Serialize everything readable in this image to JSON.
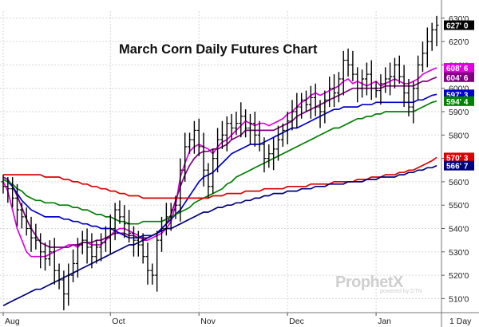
{
  "chart_data": {
    "type": "ohlc",
    "title": "March Corn Daily Futures Chart",
    "xlabel": "",
    "ylabel": "",
    "ylim": [
      504,
      633
    ],
    "grid": true,
    "y_ticks": [
      "510'0",
      "520'0",
      "530'0",
      "540'0",
      "550'0",
      "560'0",
      "570'0",
      "580'0",
      "590'0",
      "600'0",
      "610'0",
      "620'0",
      "630'0"
    ],
    "x_ticks": [
      "Aug",
      "Oct",
      "Nov",
      "Dec",
      "Jan"
    ],
    "x_tick_positions": [
      0,
      23,
      42,
      61,
      80
    ],
    "period_label": "1 Day",
    "bar_count": 94,
    "bars_close": [
      558,
      557,
      553,
      548,
      545,
      540,
      536,
      535,
      530,
      527,
      530,
      522,
      518,
      512,
      520,
      525,
      533,
      535,
      532,
      528,
      532,
      534,
      536,
      540,
      548,
      545,
      542,
      538,
      535,
      533,
      528,
      522,
      520,
      535,
      540,
      545,
      548,
      550,
      565,
      575,
      578,
      582,
      575,
      565,
      558,
      570,
      578,
      580,
      585,
      583,
      585,
      588,
      583,
      585,
      580,
      576,
      570,
      572,
      574,
      578,
      582,
      586,
      590,
      592,
      595,
      593,
      596,
      592,
      590,
      595,
      600,
      598,
      604,
      612,
      610,
      606,
      600,
      604,
      606,
      600,
      599,
      602,
      604,
      605,
      610,
      605,
      598,
      592,
      600,
      610,
      615,
      620,
      625,
      627
    ],
    "series": [
      {
        "name": "",
        "color": "#e000e0",
        "values": [
          560,
          556,
          548,
          540,
          535,
          530,
          528,
          528,
          528,
          528,
          529,
          530,
          531,
          532,
          533,
          533,
          532,
          534,
          534,
          533,
          533,
          533,
          535,
          537,
          539,
          540,
          540,
          539,
          538,
          537,
          535,
          535,
          536,
          537,
          538,
          540,
          543,
          550,
          562,
          568,
          573,
          575,
          576,
          575,
          574,
          572,
          575,
          577,
          578,
          580,
          582,
          584,
          586,
          585,
          584,
          585,
          585,
          584,
          585,
          586,
          587,
          589,
          590,
          592,
          594,
          595,
          597,
          598,
          597,
          598,
          599,
          600,
          601,
          603,
          604,
          602,
          603,
          602,
          601,
          602,
          603,
          601,
          602,
          603,
          604,
          603,
          602,
          602,
          603,
          604,
          606,
          607,
          608,
          608.75
        ]
      },
      {
        "name": "",
        "color": "#800080",
        "values": [
          562,
          561,
          558,
          554,
          549,
          544,
          540,
          537,
          534,
          533,
          532,
          532,
          532,
          532,
          532,
          533,
          533,
          534,
          534,
          534,
          535,
          535,
          536,
          537,
          538,
          538,
          538,
          537,
          537,
          536,
          536,
          536,
          537,
          538,
          540,
          542,
          546,
          552,
          558,
          563,
          567,
          570,
          572,
          573,
          573,
          574,
          574,
          575,
          576,
          578,
          579,
          580,
          582,
          582,
          582,
          582,
          582,
          582,
          582,
          583,
          584,
          585,
          586,
          588,
          589,
          590,
          591,
          592,
          593,
          594,
          595,
          596,
          597,
          598,
          599,
          600,
          600,
          600,
          600,
          600,
          600,
          600,
          601,
          601,
          601,
          601,
          601,
          601,
          601,
          602,
          603,
          603,
          604,
          604.75
        ]
      },
      {
        "name": "",
        "color": "#0000cc",
        "values": [
          561,
          560,
          558,
          555,
          552,
          550,
          548,
          547,
          546,
          545,
          545,
          545,
          545,
          544,
          544,
          543,
          543,
          542,
          542,
          541,
          541,
          540,
          540,
          540,
          539,
          538,
          537,
          536,
          536,
          536,
          537,
          537,
          537,
          538,
          540,
          542,
          544,
          546,
          548,
          551,
          554,
          557,
          560,
          562,
          563,
          564,
          566,
          568,
          570,
          572,
          573,
          574,
          575,
          576,
          576,
          576,
          577,
          578,
          579,
          580,
          581,
          582,
          583,
          583,
          584,
          585,
          586,
          587,
          588,
          589,
          590,
          591,
          591,
          592,
          592,
          592,
          592,
          593,
          593,
          593,
          594,
          594,
          594,
          594,
          594,
          594,
          594,
          594,
          594,
          595,
          595,
          596,
          597,
          597.4
        ]
      },
      {
        "name": "",
        "color": "#008000",
        "values": [
          561,
          560,
          559,
          557,
          556,
          554,
          553,
          552,
          552,
          551,
          551,
          551,
          550,
          550,
          550,
          549,
          549,
          548,
          548,
          547,
          546,
          546,
          545,
          545,
          544,
          543,
          543,
          542,
          542,
          542,
          543,
          543,
          543,
          543,
          543,
          544,
          545,
          546,
          547,
          548,
          549,
          551,
          552,
          553,
          554,
          555,
          556,
          557,
          559,
          560,
          562,
          563,
          564,
          565,
          566,
          567,
          568,
          569,
          570,
          571,
          572,
          573,
          574,
          575,
          576,
          577,
          578,
          579,
          580,
          581,
          582,
          583,
          583,
          584,
          585,
          586,
          587,
          587,
          588,
          588,
          589,
          589,
          590,
          590,
          590,
          590,
          590,
          590,
          590,
          591,
          592,
          593,
          594,
          594.5
        ]
      },
      {
        "name": "",
        "color": "#dd0000",
        "values": [
          563,
          563,
          563,
          563,
          563,
          563,
          563,
          563,
          563,
          562,
          562,
          562,
          562,
          561,
          561,
          560,
          560,
          559,
          559,
          558,
          558,
          557,
          557,
          556,
          556,
          555,
          555,
          554,
          554,
          554,
          553,
          553,
          553,
          553,
          553,
          553,
          553,
          553,
          553,
          553,
          553,
          553,
          553,
          553,
          553,
          554,
          554,
          554,
          555,
          555,
          555,
          555,
          556,
          556,
          556,
          556,
          557,
          557,
          557,
          557,
          557,
          558,
          558,
          558,
          558,
          558,
          559,
          559,
          559,
          559,
          559,
          560,
          560,
          560,
          560,
          560,
          561,
          561,
          561,
          562,
          562,
          562,
          563,
          563,
          563,
          564,
          564,
          565,
          565,
          566,
          567,
          568,
          569,
          570.4
        ]
      },
      {
        "name": "",
        "color": "#000080",
        "values": [
          507,
          508,
          509,
          510,
          511,
          512,
          513,
          514,
          514,
          515,
          516,
          517,
          518,
          519,
          520,
          521,
          522,
          523,
          524,
          525,
          526,
          527,
          528,
          529,
          530,
          531,
          532,
          533,
          533,
          534,
          535,
          536,
          537,
          538,
          539,
          540,
          540,
          541,
          542,
          543,
          544,
          545,
          546,
          547,
          547,
          548,
          549,
          549,
          550,
          550,
          551,
          551,
          552,
          552,
          553,
          553,
          554,
          554,
          555,
          555,
          555,
          556,
          556,
          556,
          557,
          557,
          557,
          558,
          558,
          558,
          559,
          559,
          559,
          559,
          560,
          560,
          560,
          560,
          561,
          561,
          561,
          562,
          562,
          562,
          562,
          563,
          563,
          564,
          564,
          565,
          565,
          566,
          566,
          566.9
        ]
      }
    ],
    "value_labels": [
      {
        "text": "627' 0",
        "bg": "#000000",
        "fg": "#ffffff",
        "value": 627
      },
      {
        "text": "608' 6",
        "bg": "#e000e0",
        "fg": "#ffffff",
        "value": 608.75
      },
      {
        "text": "604' 6",
        "bg": "#800080",
        "fg": "#ffffff",
        "value": 604.75
      },
      {
        "text": "597' 3",
        "bg": "#0000cc",
        "fg": "#ffffff",
        "value": 597.4
      },
      {
        "text": "594' 4",
        "bg": "#008000",
        "fg": "#ffffff",
        "value": 594.5
      },
      {
        "text": "570' 3",
        "bg": "#dd0000",
        "fg": "#ffffff",
        "value": 570.4
      },
      {
        "text": "566' 7",
        "bg": "#000080",
        "fg": "#ffffff",
        "value": 566.9
      }
    ]
  },
  "watermark": {
    "brand": "ProphetX",
    "sub": "powered by DTN"
  }
}
